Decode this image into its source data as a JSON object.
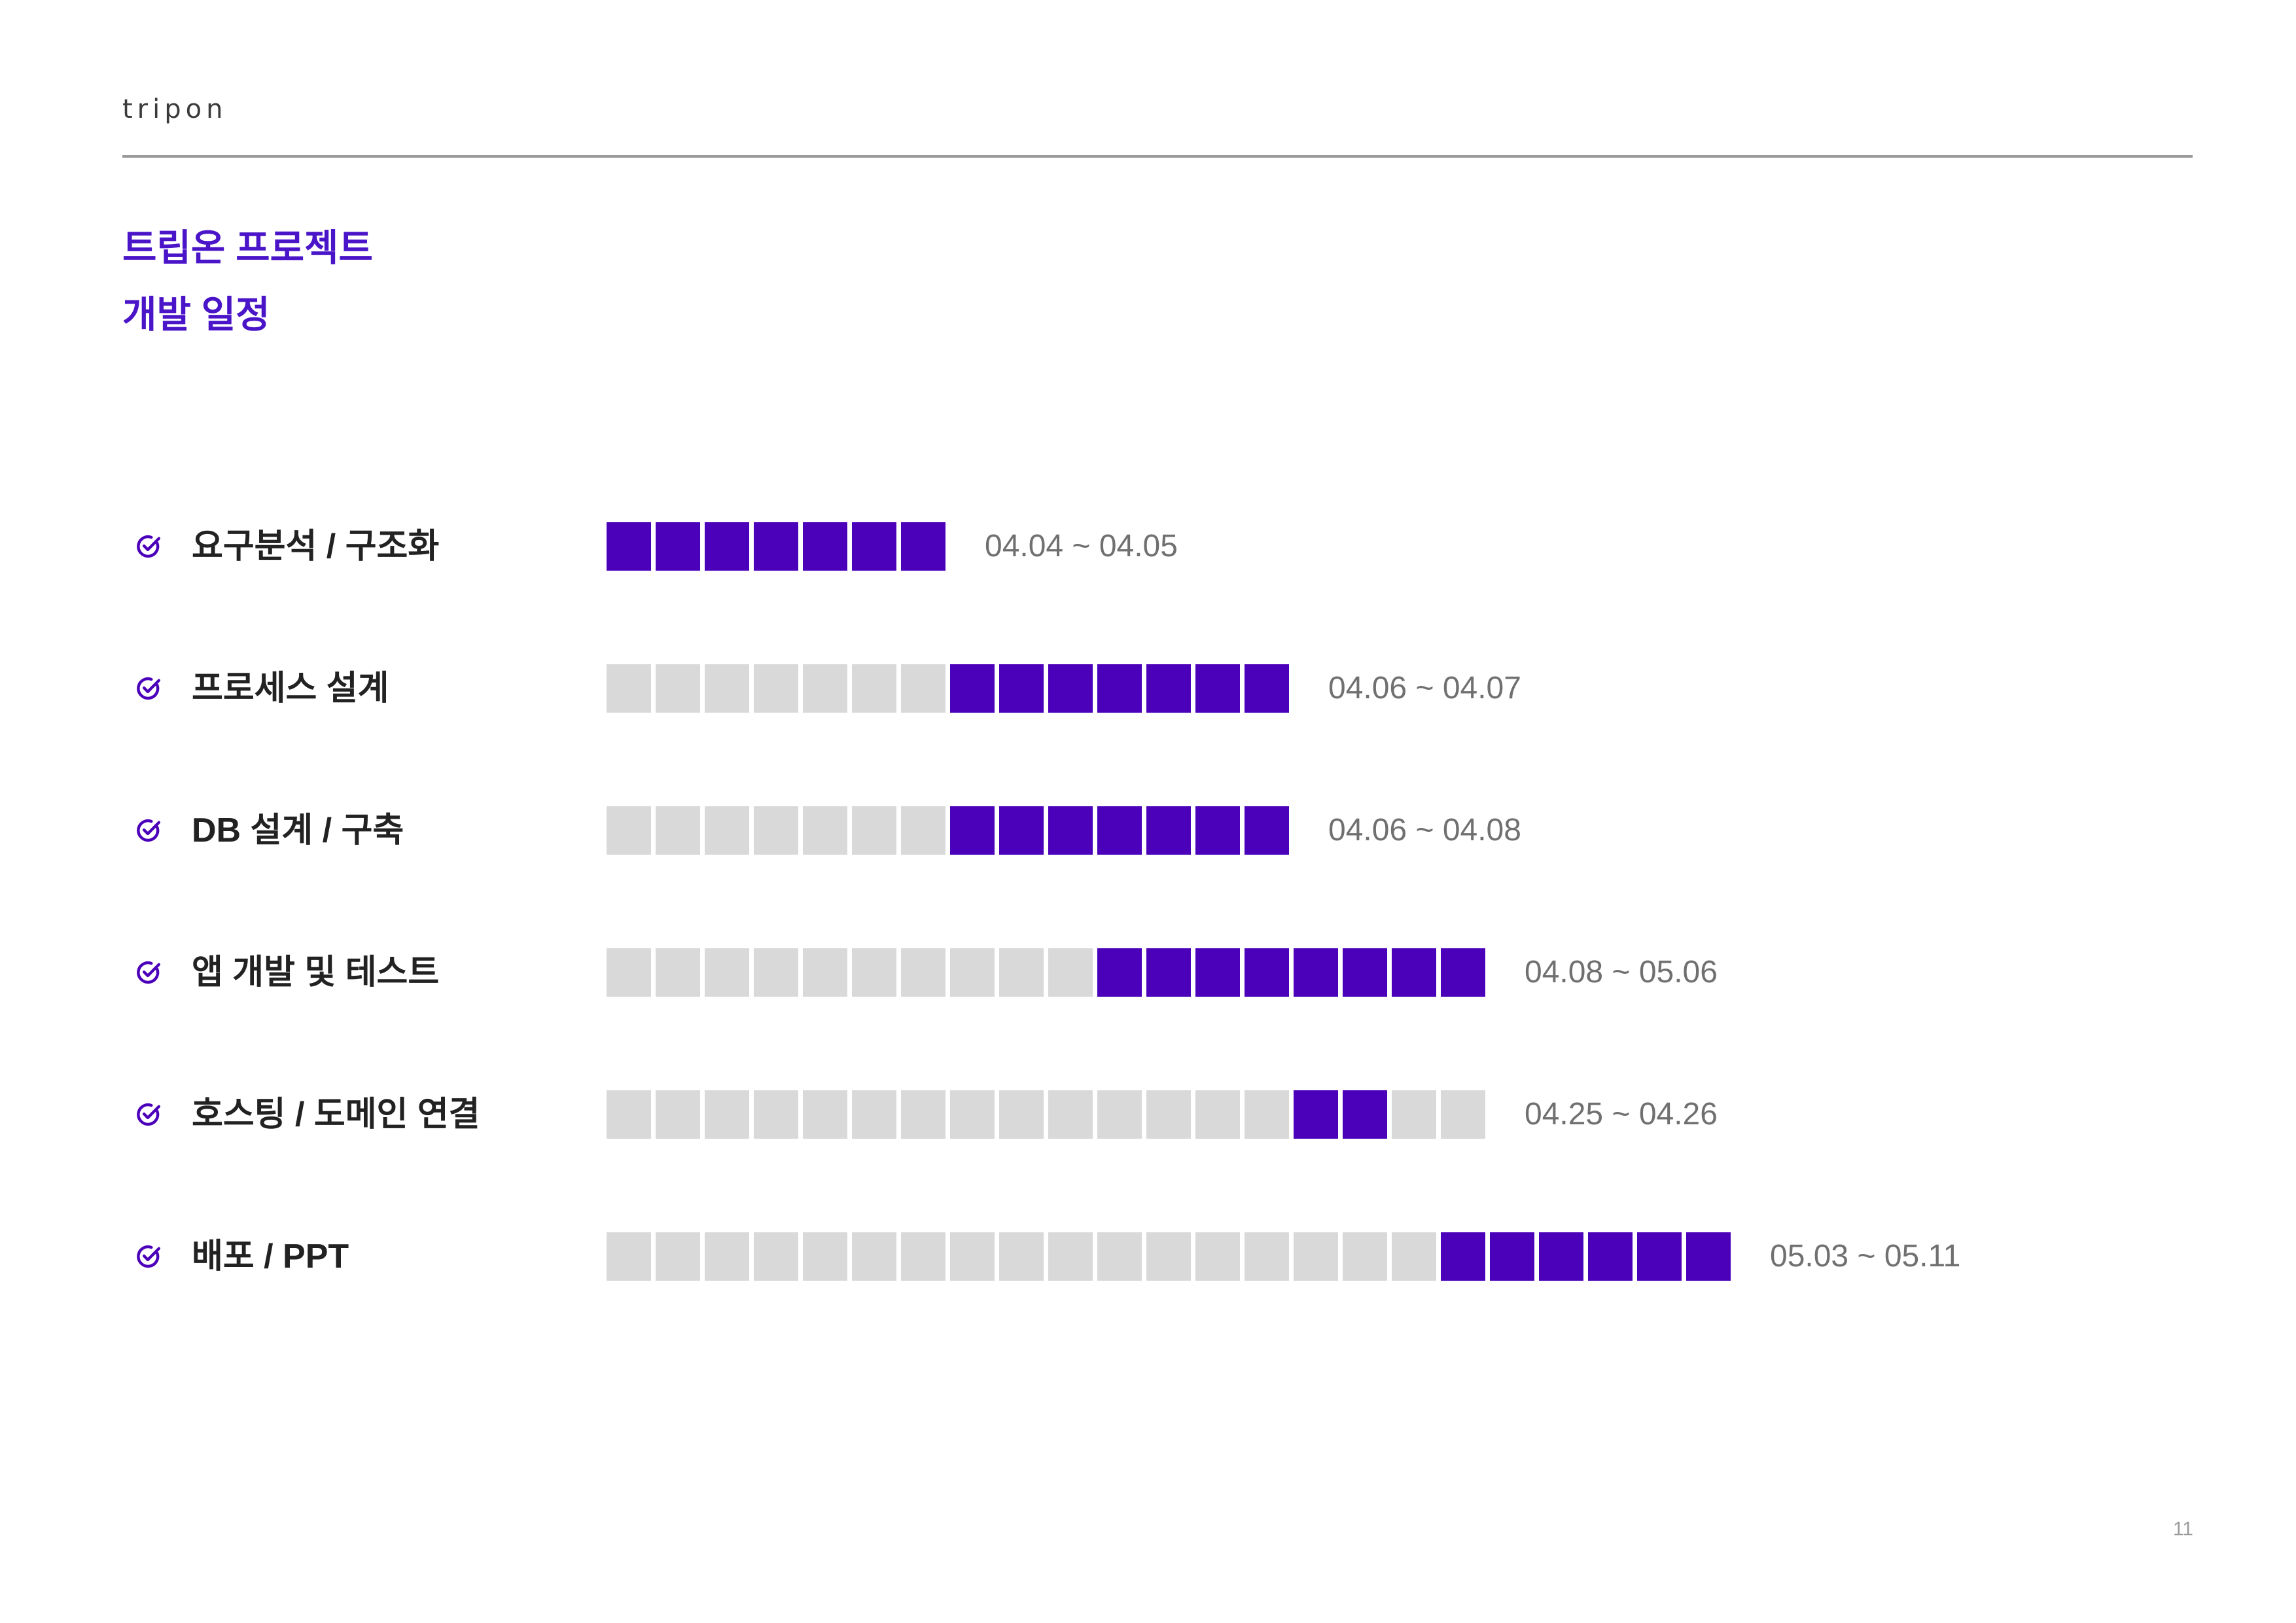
{
  "header": {
    "logo_text": "tripon"
  },
  "title": {
    "line1": "트립온 프로젝트",
    "line2": "개발 일정"
  },
  "icons": {
    "row_marker": "check-circle-icon"
  },
  "schedule": [
    {
      "label": "요구분석 / 구조화",
      "dates": "04.04 ~ 04.05",
      "blocks": {
        "empty_before": 0,
        "filled": 7,
        "empty_after": 0
      }
    },
    {
      "label": "프로세스 설계",
      "dates": "04.06 ~ 04.07",
      "blocks": {
        "empty_before": 7,
        "filled": 7,
        "empty_after": 0
      }
    },
    {
      "label": "DB 설계 / 구축",
      "dates": "04.06 ~ 04.08",
      "blocks": {
        "empty_before": 7,
        "filled": 7,
        "empty_after": 0
      }
    },
    {
      "label": "앱 개발 및 테스트",
      "dates": "04.08 ~ 05.06",
      "blocks": {
        "empty_before": 10,
        "filled": 8,
        "empty_after": 0
      }
    },
    {
      "label": "호스팅 / 도메인 연결",
      "dates": "04.25 ~ 04.26",
      "blocks": {
        "empty_before": 14,
        "filled": 2,
        "empty_after": 2
      }
    },
    {
      "label": "배포 / PPT",
      "dates": "05.03 ~ 05.11",
      "blocks": {
        "empty_before": 17,
        "filled": 6,
        "empty_after": 0
      }
    }
  ],
  "page_number": "11",
  "colors": {
    "accent": "#4B00BA",
    "title": "#4A14C8",
    "empty_block": "#D9D9D9",
    "date_text": "#707070"
  }
}
